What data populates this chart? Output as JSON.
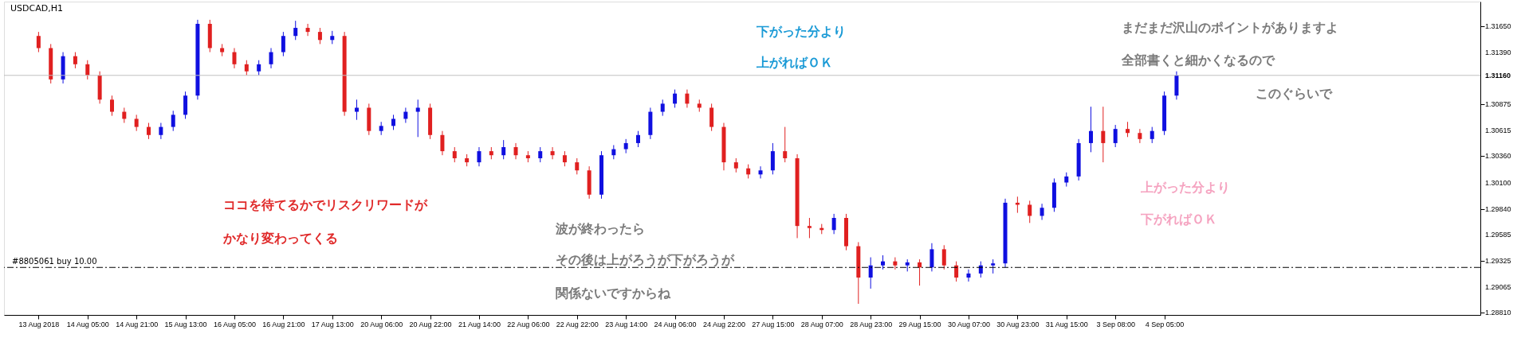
{
  "chart_data": {
    "type": "candlestick",
    "title": "USDCAD,H1",
    "categories": [
      "13 Aug 2018",
      null,
      null,
      null,
      "14 Aug 05:00",
      null,
      null,
      null,
      "14 Aug 21:00",
      null,
      null,
      null,
      "15 Aug 13:00",
      null,
      null,
      null,
      "16 Aug 05:00",
      null,
      null,
      null,
      "16 Aug 21:00",
      null,
      null,
      null,
      "17 Aug 13:00",
      null,
      null,
      null,
      "20 Aug 06:00",
      null,
      null,
      null,
      "20 Aug 22:00",
      null,
      null,
      null,
      "21 Aug 14:00",
      null,
      null,
      null,
      "22 Aug 06:00",
      null,
      null,
      null,
      "22 Aug 22:00",
      null,
      null,
      null,
      "23 Aug 14:00",
      null,
      null,
      null,
      "24 Aug 06:00",
      null,
      null,
      null,
      "24 Aug 22:00",
      null,
      null,
      null,
      "27 Aug 15:00",
      null,
      null,
      null,
      "28 Aug 07:00",
      null,
      null,
      null,
      "28 Aug 23:00",
      null,
      null,
      null,
      "29 Aug 15:00",
      null,
      null,
      null,
      "30 Aug 07:00",
      null,
      null,
      null,
      "30 Aug 23:00",
      null,
      null,
      null,
      "31 Aug 15:00",
      null,
      null,
      null,
      "3 Sep 08:00",
      null,
      null,
      null,
      "4 Sep 05:00",
      null,
      null,
      null,
      null,
      null,
      null,
      null,
      null,
      null,
      null,
      null,
      null,
      null,
      null,
      null,
      null,
      null,
      null,
      null,
      null,
      null,
      null,
      null,
      null,
      null
    ],
    "ohlc": [
      [
        1.3155,
        1.3159,
        1.3139,
        1.3143
      ],
      [
        1.3143,
        1.3147,
        1.3108,
        1.3112
      ],
      [
        1.3112,
        1.3139,
        1.3108,
        1.3135
      ],
      [
        1.3135,
        1.3139,
        1.3123,
        1.3127
      ],
      [
        1.3127,
        1.3131,
        1.3112,
        1.3116
      ],
      [
        1.3116,
        1.312,
        1.3088,
        1.3092
      ],
      [
        1.3092,
        1.3096,
        1.3076,
        1.308
      ],
      [
        1.308,
        1.3084,
        1.3069,
        1.3073
      ],
      [
        1.3073,
        1.3077,
        1.3061,
        1.3065
      ],
      [
        1.3065,
        1.3069,
        1.3053,
        1.3057
      ],
      [
        1.3057,
        1.3069,
        1.3053,
        1.3065
      ],
      [
        1.3065,
        1.3081,
        1.3061,
        1.3077
      ],
      [
        1.3077,
        1.31,
        1.3073,
        1.3096
      ],
      [
        1.3096,
        1.3171,
        1.3092,
        1.3167
      ],
      [
        1.3167,
        1.3171,
        1.3139,
        1.3143
      ],
      [
        1.3143,
        1.3147,
        1.3135,
        1.3139
      ],
      [
        1.3139,
        1.3143,
        1.3123,
        1.3127
      ],
      [
        1.3127,
        1.3131,
        1.3116,
        1.312
      ],
      [
        1.312,
        1.3131,
        1.3116,
        1.3127
      ],
      [
        1.3127,
        1.3143,
        1.3123,
        1.3139
      ],
      [
        1.3139,
        1.3159,
        1.3135,
        1.3155
      ],
      [
        1.3155,
        1.317,
        1.3151,
        1.3163
      ],
      [
        1.3163,
        1.3167,
        1.3155,
        1.3159
      ],
      [
        1.3159,
        1.3163,
        1.3147,
        1.3151
      ],
      [
        1.3151,
        1.316,
        1.3147,
        1.3155
      ],
      [
        1.3155,
        1.3159,
        1.3076,
        1.308
      ],
      [
        1.308,
        1.3092,
        1.3072,
        1.3084
      ],
      [
        1.3084,
        1.3088,
        1.3057,
        1.3061
      ],
      [
        1.3061,
        1.307,
        1.3057,
        1.3066
      ],
      [
        1.3066,
        1.3077,
        1.3062,
        1.3073
      ],
      [
        1.3073,
        1.3084,
        1.3069,
        1.308
      ],
      [
        1.308,
        1.3092,
        1.3055,
        1.3084
      ],
      [
        1.3084,
        1.3088,
        1.3053,
        1.3057
      ],
      [
        1.3057,
        1.3061,
        1.3037,
        1.3041
      ],
      [
        1.3041,
        1.3045,
        1.303,
        1.3034
      ],
      [
        1.3034,
        1.3038,
        1.3026,
        1.303
      ],
      [
        1.303,
        1.3045,
        1.3026,
        1.3041
      ],
      [
        1.3041,
        1.3045,
        1.3033,
        1.3037
      ],
      [
        1.3037,
        1.3052,
        1.3033,
        1.3045
      ],
      [
        1.3045,
        1.3049,
        1.3033,
        1.3037
      ],
      [
        1.3037,
        1.3041,
        1.303,
        1.3034
      ],
      [
        1.3034,
        1.3045,
        1.303,
        1.3041
      ],
      [
        1.3041,
        1.3045,
        1.3033,
        1.3037
      ],
      [
        1.3037,
        1.3041,
        1.3026,
        1.303
      ],
      [
        1.303,
        1.3034,
        1.3018,
        1.3022
      ],
      [
        1.3022,
        1.3026,
        1.2994,
        1.2998
      ],
      [
        1.2998,
        1.3041,
        1.2994,
        1.3037
      ],
      [
        1.3037,
        1.3047,
        1.3033,
        1.3043
      ],
      [
        1.3043,
        1.3053,
        1.3039,
        1.3049
      ],
      [
        1.3049,
        1.3061,
        1.3045,
        1.3057
      ],
      [
        1.3057,
        1.3084,
        1.3053,
        1.308
      ],
      [
        1.308,
        1.3092,
        1.3076,
        1.3088
      ],
      [
        1.3088,
        1.3102,
        1.3084,
        1.3098
      ],
      [
        1.3098,
        1.3102,
        1.3084,
        1.3088
      ],
      [
        1.3088,
        1.3092,
        1.308,
        1.3084
      ],
      [
        1.3084,
        1.3088,
        1.3061,
        1.3065
      ],
      [
        1.3065,
        1.3069,
        1.3022,
        1.303
      ],
      [
        1.303,
        1.3034,
        1.302,
        1.3024
      ],
      [
        1.3024,
        1.3028,
        1.3014,
        1.3018
      ],
      [
        1.3018,
        1.3026,
        1.3014,
        1.3022
      ],
      [
        1.3022,
        1.3049,
        1.3018,
        1.3041
      ],
      [
        1.3041,
        1.3065,
        1.303,
        1.3034
      ],
      [
        1.3034,
        1.3038,
        1.2955,
        1.2967
      ],
      [
        1.2967,
        1.2975,
        1.2955,
        1.2965
      ],
      [
        1.2965,
        1.2969,
        1.2959,
        1.2963
      ],
      [
        1.2963,
        1.2979,
        1.2959,
        1.2975
      ],
      [
        1.2975,
        1.2979,
        1.2943,
        1.2947
      ],
      [
        1.2947,
        1.2951,
        1.289,
        1.2916
      ],
      [
        1.2916,
        1.2936,
        1.2905,
        1.2928
      ],
      [
        1.2928,
        1.2938,
        1.2924,
        1.2932
      ],
      [
        1.2932,
        1.2936,
        1.2924,
        1.2928
      ],
      [
        1.2928,
        1.2934,
        1.2922,
        1.2931
      ],
      [
        1.2931,
        1.2934,
        1.2908,
        1.2926
      ],
      [
        1.2926,
        1.295,
        1.2922,
        1.2944
      ],
      [
        1.2944,
        1.2948,
        1.2924,
        1.2928
      ],
      [
        1.2928,
        1.2932,
        1.2912,
        1.2916
      ],
      [
        1.2916,
        1.2924,
        1.2912,
        1.292
      ],
      [
        1.292,
        1.2932,
        1.2916,
        1.2928
      ],
      [
        1.2928,
        1.2934,
        1.292,
        1.293
      ],
      [
        1.293,
        1.2994,
        1.2926,
        1.299
      ],
      [
        1.299,
        1.2996,
        1.298,
        1.2988
      ],
      [
        1.2988,
        1.2992,
        1.297,
        1.2977
      ],
      [
        1.2977,
        1.2989,
        1.2973,
        1.2985
      ],
      [
        1.2985,
        1.3014,
        1.2981,
        1.301
      ],
      [
        1.301,
        1.302,
        1.3006,
        1.3016
      ],
      [
        1.3016,
        1.3053,
        1.3012,
        1.3049
      ],
      [
        1.3049,
        1.3085,
        1.304,
        1.3061
      ],
      [
        1.3061,
        1.3085,
        1.303,
        1.3049
      ],
      [
        1.3049,
        1.3067,
        1.3045,
        1.3063
      ],
      [
        1.3063,
        1.307,
        1.3055,
        1.3059
      ],
      [
        1.3059,
        1.3063,
        1.3049,
        1.3053
      ],
      [
        1.3053,
        1.3065,
        1.3049,
        1.3061
      ],
      [
        1.3061,
        1.31,
        1.3057,
        1.3096
      ],
      [
        1.3096,
        1.312,
        1.3092,
        1.3116
      ],
      null,
      null,
      null,
      null,
      null,
      null,
      null,
      null,
      null,
      null,
      null,
      null,
      null,
      null,
      null,
      null,
      null,
      null,
      null,
      null,
      null,
      null,
      null,
      null
    ],
    "ylim": [
      1.2879,
      1.3189
    ],
    "yticks": [
      {
        "value": 1.3165,
        "label": "1.31650"
      },
      {
        "value": 1.3139,
        "label": "1.31390"
      },
      {
        "value": 1.30875,
        "label": "1.30875"
      },
      {
        "value": 1.30615,
        "label": "1.30615"
      },
      {
        "value": 1.3036,
        "label": "1.30360"
      },
      {
        "value": 1.301,
        "label": "1.30100"
      },
      {
        "value": 1.2984,
        "label": "1.29840"
      },
      {
        "value": 1.29585,
        "label": "1.29585"
      },
      {
        "value": 1.29325,
        "label": "1.29325"
      },
      {
        "value": 1.29065,
        "label": "1.29065"
      },
      {
        "value": 1.2881,
        "label": "1.28810"
      }
    ],
    "ref_lines": [
      {
        "axis": "y",
        "value": 1.3116,
        "label": "1.31160",
        "color": "#c0c0c0",
        "line_style": "solid"
      },
      {
        "axis": "y",
        "value": 1.2926,
        "label": "#8805061 buy 10.00",
        "color": "#000000",
        "line_style": "dashed"
      }
    ],
    "annotations": [
      "ココを待てるかでリスクリワードが",
      "かなり変わってくる",
      "波が終わったら",
      "その後は上がろうが下がろうが",
      "関係ないですからね",
      "下がった分より",
      "上がればＯＫ",
      "まだまだ沢山のポイントがありますよ",
      "全部書くと細かくなるので",
      "このぐらいで",
      "上がった分より",
      "下がればＯＫ"
    ],
    "grid": false,
    "legend": false
  }
}
